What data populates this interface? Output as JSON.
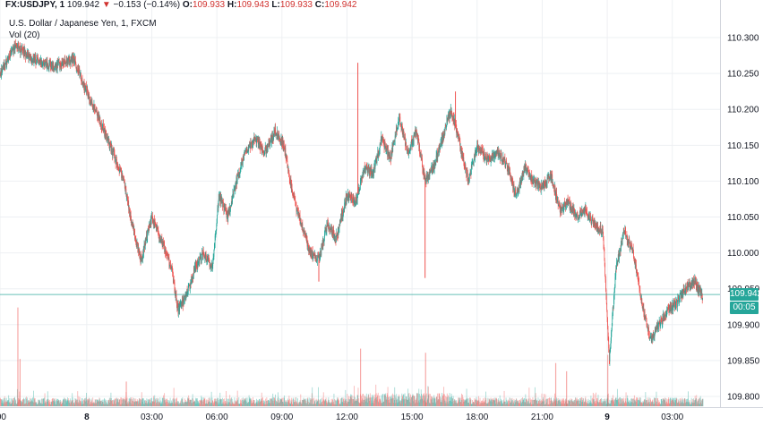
{
  "header": {
    "symbol": "FX:USDJPY, 1",
    "last": "109.942",
    "arrow": "▼",
    "change": "−0.153 (−0.14%)",
    "o_label": "O:",
    "o_value": "109.933",
    "h_label": "H:",
    "h_value": "109.943",
    "l_label": "L:",
    "l_value": "109.933",
    "c_label": "C:",
    "c_value": "109.942"
  },
  "title": "U.S. Dollar / Japanese Yen, 1, FXCM",
  "volume_label": "Vol (20)",
  "last_price_badge": "109.942",
  "countdown_badge": "00:05",
  "colors": {
    "up": "#26a69a",
    "down": "#ef5350",
    "price_line": "#26a69a",
    "grid": "#eef0f3"
  },
  "chart_data": {
    "type": "candlestick",
    "y_ticks": [
      "110.300",
      "110.250",
      "110.200",
      "110.150",
      "110.100",
      "110.050",
      "110.000",
      "109.950",
      "109.900",
      "109.850",
      "109.800"
    ],
    "ylim": [
      109.785,
      110.33
    ],
    "x_ticks": [
      {
        "label": ":00",
        "bold": false
      },
      {
        "label": "8",
        "bold": true
      },
      {
        "label": "03:00",
        "bold": false
      },
      {
        "label": "06:00",
        "bold": false
      },
      {
        "label": "09:00",
        "bold": false
      },
      {
        "label": "12:00",
        "bold": false
      },
      {
        "label": "15:00",
        "bold": false
      },
      {
        "label": "18:00",
        "bold": false
      },
      {
        "label": "21:00",
        "bold": false
      },
      {
        "label": "9",
        "bold": true
      },
      {
        "label": "03:00",
        "bold": false
      }
    ],
    "x_tick_hours": [
      -4,
      0,
      3,
      6,
      9,
      12,
      15,
      18,
      21,
      24,
      27
    ],
    "x_range_hours": [
      -4,
      29.2
    ],
    "last_price": 109.942,
    "price_path": [
      [
        -4.0,
        110.25
      ],
      [
        -3.3,
        110.29
      ],
      [
        -2.5,
        110.27
      ],
      [
        -1.5,
        110.26
      ],
      [
        -0.6,
        110.27
      ],
      [
        0.2,
        110.21
      ],
      [
        0.8,
        110.17
      ],
      [
        1.2,
        110.14
      ],
      [
        1.7,
        110.1
      ],
      [
        2.1,
        110.04
      ],
      [
        2.5,
        109.99
      ],
      [
        3.0,
        110.05
      ],
      [
        3.4,
        110.02
      ],
      [
        3.9,
        109.98
      ],
      [
        4.2,
        109.92
      ],
      [
        4.6,
        109.94
      ],
      [
        5.0,
        109.98
      ],
      [
        5.4,
        110.0
      ],
      [
        5.8,
        109.98
      ],
      [
        6.1,
        110.08
      ],
      [
        6.5,
        110.05
      ],
      [
        6.9,
        110.1
      ],
      [
        7.3,
        110.14
      ],
      [
        7.8,
        110.16
      ],
      [
        8.2,
        110.14
      ],
      [
        8.7,
        110.17
      ],
      [
        9.1,
        110.15
      ],
      [
        9.5,
        110.08
      ],
      [
        9.9,
        110.04
      ],
      [
        10.3,
        110.0
      ],
      [
        10.7,
        109.99
      ],
      [
        11.1,
        110.04
      ],
      [
        11.5,
        110.02
      ],
      [
        12.0,
        110.08
      ],
      [
        12.4,
        110.07
      ],
      [
        12.8,
        110.12
      ],
      [
        13.2,
        110.11
      ],
      [
        13.6,
        110.16
      ],
      [
        14.0,
        110.13
      ],
      [
        14.4,
        110.19
      ],
      [
        14.8,
        110.14
      ],
      [
        15.2,
        110.17
      ],
      [
        15.6,
        110.1
      ],
      [
        16.0,
        110.12
      ],
      [
        16.4,
        110.16
      ],
      [
        16.8,
        110.2
      ],
      [
        17.2,
        110.15
      ],
      [
        17.6,
        110.1
      ],
      [
        18.0,
        110.15
      ],
      [
        18.5,
        110.13
      ],
      [
        19.0,
        110.14
      ],
      [
        19.4,
        110.12
      ],
      [
        19.8,
        110.08
      ],
      [
        20.2,
        110.12
      ],
      [
        20.6,
        110.1
      ],
      [
        21.0,
        110.09
      ],
      [
        21.4,
        110.11
      ],
      [
        21.8,
        110.06
      ],
      [
        22.2,
        110.07
      ],
      [
        22.6,
        110.05
      ],
      [
        23.0,
        110.06
      ],
      [
        23.4,
        110.04
      ],
      [
        23.8,
        110.03
      ],
      [
        24.1,
        109.85
      ],
      [
        24.4,
        109.98
      ],
      [
        24.8,
        110.03
      ],
      [
        25.2,
        110.0
      ],
      [
        25.6,
        109.93
      ],
      [
        26.0,
        109.88
      ],
      [
        26.4,
        109.9
      ],
      [
        26.8,
        109.92
      ],
      [
        27.2,
        109.93
      ],
      [
        27.6,
        109.95
      ],
      [
        28.0,
        109.96
      ],
      [
        28.4,
        109.94
      ]
    ],
    "spikes": [
      {
        "x": 12.5,
        "high": 110.265
      },
      {
        "x": 15.6,
        "low": 109.965
      },
      {
        "x": 10.7,
        "low": 109.96
      },
      {
        "x": 24.1,
        "low": 109.845
      },
      {
        "x": 17.0,
        "high": 110.225
      }
    ],
    "volume_spikes": [
      {
        "x": -3.2,
        "size": 0.48
      },
      {
        "x": -3.1,
        "size": 0.23
      },
      {
        "x": 12.6,
        "size": 0.28
      },
      {
        "x": 15.6,
        "size": 0.26
      },
      {
        "x": 21.6,
        "size": 0.21
      },
      {
        "x": 22.1,
        "size": 0.17
      },
      {
        "x": 24.0,
        "size": 0.25
      },
      {
        "x": 1.8,
        "size": 0.12
      }
    ]
  }
}
